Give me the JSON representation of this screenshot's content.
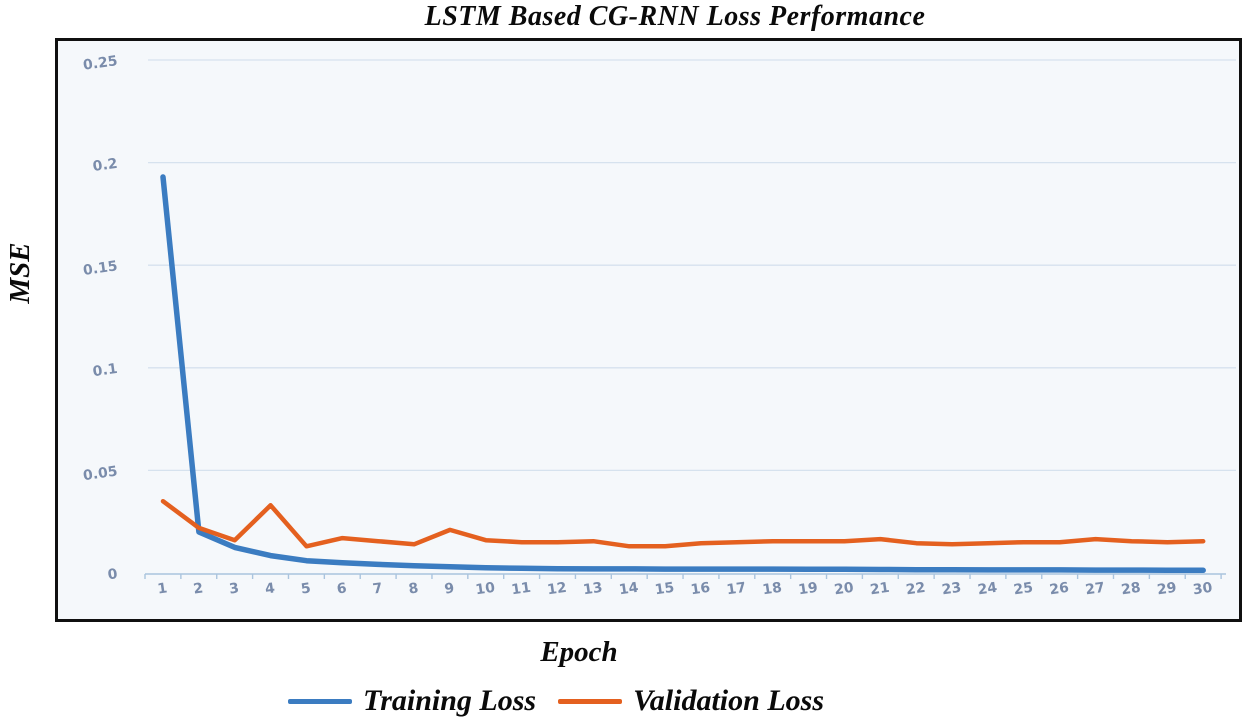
{
  "title": "LSTM Based CG-RNN Loss Performance",
  "y_axis_label": "MSE",
  "x_axis_label": "Epoch",
  "legend": [
    {
      "label": "Training Loss",
      "color": "#3b7cc1"
    },
    {
      "label": "Validation Loss",
      "color": "#e4601f"
    }
  ],
  "colors": {
    "training_line": "#3b7cc1",
    "validation_line": "#e4601f",
    "gridline": "#d6e2ee",
    "axis_line": "#aac4de",
    "tick_text": "#7a8cab",
    "plot_background": "#f5f8fb",
    "plot_border": "#101010"
  },
  "chart_data": {
    "type": "line",
    "title": "LSTM Based CG-RNN Loss Performance",
    "xlabel": "Epoch",
    "ylabel": "MSE",
    "x": [
      1,
      2,
      3,
      4,
      5,
      6,
      7,
      8,
      9,
      10,
      11,
      12,
      13,
      14,
      15,
      16,
      17,
      18,
      19,
      20,
      21,
      22,
      23,
      24,
      25,
      26,
      27,
      28,
      29,
      30
    ],
    "x_tick_labels": [
      "1",
      "2",
      "3",
      "4",
      "5",
      "6",
      "7",
      "8",
      "9",
      "10",
      "11",
      "12",
      "13",
      "14",
      "15",
      "16",
      "17",
      "18",
      "19",
      "20",
      "21",
      "22",
      "23",
      "24",
      "25",
      "26",
      "27",
      "28",
      "29",
      "30"
    ],
    "y_ticks": [
      0,
      0.05,
      0.1,
      0.15,
      0.2,
      0.25
    ],
    "y_tick_labels": [
      "0",
      "0.05",
      "0.1",
      "0.15",
      "0.2",
      "0.25"
    ],
    "ylim": [
      0,
      0.25
    ],
    "grid": "horizontal",
    "legend_position": "bottom",
    "series": [
      {
        "name": "Training Loss",
        "color": "#3b7cc1",
        "values": [
          0.193,
          0.02,
          0.0125,
          0.0085,
          0.006,
          0.005,
          0.0042,
          0.0035,
          0.003,
          0.0026,
          0.0023,
          0.0021,
          0.002,
          0.002,
          0.0019,
          0.0019,
          0.0019,
          0.0019,
          0.0018,
          0.0018,
          0.0017,
          0.0016,
          0.0016,
          0.0015,
          0.0015,
          0.0015,
          0.0014,
          0.0014,
          0.0013,
          0.0013
        ]
      },
      {
        "name": "Validation Loss",
        "color": "#e4601f",
        "values": [
          0.035,
          0.022,
          0.016,
          0.033,
          0.013,
          0.017,
          0.0155,
          0.014,
          0.021,
          0.016,
          0.015,
          0.015,
          0.0155,
          0.013,
          0.013,
          0.0145,
          0.015,
          0.0155,
          0.0155,
          0.0155,
          0.0165,
          0.0145,
          0.014,
          0.0145,
          0.015,
          0.015,
          0.0165,
          0.0155,
          0.015,
          0.0155
        ]
      }
    ]
  }
}
